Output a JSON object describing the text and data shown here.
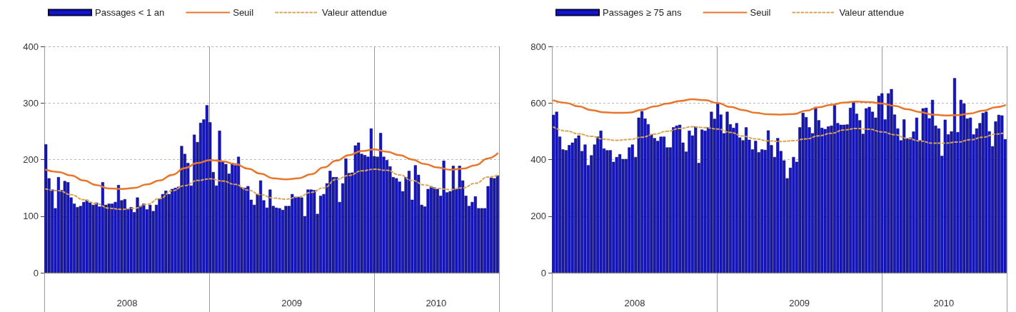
{
  "chart_data": [
    {
      "type": "bar",
      "grid": true,
      "legend": "top left",
      "ylim": [
        0,
        400
      ],
      "yticks": [
        0,
        100,
        200,
        300,
        400
      ],
      "xlim": [
        "2007-12-31T12:00",
        "2010-10-04T12:00"
      ],
      "xticks": [
        {
          "value": "2007-12-31T12:00",
          "label": null
        },
        {
          "value": "2008-07-02",
          "label": "2008"
        },
        {
          "value": "2009-01-01",
          "label": null
        },
        {
          "value": "2009-07-02",
          "label": "2009"
        },
        {
          "value": "2010-01-01",
          "label": null
        },
        {
          "value": "2010-05-18",
          "label": "2010"
        },
        {
          "value": "2010-10-04T12:00",
          "label": null
        }
      ],
      "x": [
        "2008-01-04",
        "2008-01-11",
        "2008-01-18",
        "2008-01-25",
        "2008-02-01",
        "2008-02-08",
        "2008-02-15",
        "2008-02-22",
        "2008-02-29",
        "2008-03-07",
        "2008-03-14",
        "2008-03-21",
        "2008-03-28",
        "2008-04-04",
        "2008-04-11",
        "2008-04-18",
        "2008-04-25",
        "2008-05-02",
        "2008-05-09",
        "2008-05-16",
        "2008-05-23",
        "2008-05-30",
        "2008-06-06",
        "2008-06-13",
        "2008-06-20",
        "2008-06-27",
        "2008-07-04",
        "2008-07-11",
        "2008-07-18",
        "2008-07-25",
        "2008-08-01",
        "2008-08-08",
        "2008-08-15",
        "2008-08-22",
        "2008-08-29",
        "2008-09-05",
        "2008-09-12",
        "2008-09-19",
        "2008-09-26",
        "2008-10-03",
        "2008-10-10",
        "2008-10-17",
        "2008-10-24",
        "2008-10-31",
        "2008-11-07",
        "2008-11-14",
        "2008-11-21",
        "2008-11-28",
        "2008-12-05",
        "2008-12-12",
        "2008-12-19",
        "2008-12-26",
        "2009-01-02",
        "2009-01-09",
        "2009-01-16",
        "2009-01-23",
        "2009-01-30",
        "2009-02-06",
        "2009-02-13",
        "2009-02-20",
        "2009-02-27",
        "2009-03-06",
        "2009-03-13",
        "2009-03-20",
        "2009-03-27",
        "2009-04-03",
        "2009-04-10",
        "2009-04-17",
        "2009-04-24",
        "2009-05-01",
        "2009-05-08",
        "2009-05-15",
        "2009-05-22",
        "2009-05-29",
        "2009-06-05",
        "2009-06-12",
        "2009-06-19",
        "2009-06-26",
        "2009-07-03",
        "2009-07-10",
        "2009-07-17",
        "2009-07-24",
        "2009-07-31",
        "2009-08-07",
        "2009-08-14",
        "2009-08-21",
        "2009-08-28",
        "2009-09-04",
        "2009-09-11",
        "2009-09-18",
        "2009-09-25",
        "2009-10-02",
        "2009-10-09",
        "2009-10-16",
        "2009-10-23",
        "2009-10-30",
        "2009-11-06",
        "2009-11-13",
        "2009-11-20",
        "2009-11-27",
        "2009-12-04",
        "2009-12-11",
        "2009-12-18",
        "2009-12-25",
        "2010-01-01",
        "2010-01-08",
        "2010-01-15",
        "2010-01-22",
        "2010-01-29",
        "2010-02-05",
        "2010-02-12",
        "2010-02-19",
        "2010-02-26",
        "2010-03-05",
        "2010-03-12",
        "2010-03-19",
        "2010-03-26",
        "2010-04-02",
        "2010-04-09",
        "2010-04-16",
        "2010-04-23",
        "2010-04-30",
        "2010-05-07",
        "2010-05-14",
        "2010-05-21",
        "2010-05-28",
        "2010-06-04",
        "2010-06-11",
        "2010-06-18",
        "2010-06-25",
        "2010-07-02",
        "2010-07-09",
        "2010-07-16",
        "2010-07-23",
        "2010-07-30",
        "2010-08-06",
        "2010-08-13",
        "2010-08-20",
        "2010-08-27",
        "2010-09-03",
        "2010-09-10",
        "2010-09-17",
        "2010-09-24",
        "2010-10-01"
      ],
      "series": [
        {
          "name": "Passages < 1 an",
          "color": "#1414c8",
          "values": [
            227,
            167,
            147,
            114,
            169,
            146,
            162,
            160,
            133,
            122,
            116,
            118,
            125,
            129,
            124,
            120,
            124,
            117,
            160,
            120,
            122,
            122,
            125,
            155,
            128,
            130,
            113,
            116,
            107,
            133,
            118,
            122,
            112,
            120,
            109,
            120,
            131,
            139,
            145,
            139,
            148,
            150,
            152,
            224,
            210,
            194,
            154,
            244,
            231,
            265,
            271,
            296,
            266,
            178,
            154,
            251,
            196,
            192,
            175,
            194,
            190,
            205,
            151,
            150,
            153,
            129,
            120,
            139,
            163,
            128,
            115,
            147,
            118,
            115,
            114,
            111,
            118,
            118,
            139,
            134,
            134,
            133,
            100,
            147,
            147,
            146,
            104,
            136,
            139,
            158,
            180,
            169,
            169,
            125,
            158,
            202,
            176,
            177,
            225,
            230,
            210,
            208,
            205,
            255,
            206,
            205,
            247,
            205,
            199,
            188,
            169,
            167,
            161,
            144,
            169,
            180,
            129,
            190,
            173,
            120,
            117,
            148,
            153,
            151,
            148,
            136,
            198,
            142,
            144,
            189,
            148,
            189,
            163,
            136,
            118,
            125,
            135,
            114,
            114,
            114,
            153,
            168,
            167,
            172
          ]
        },
        {
          "type": "line",
          "name": "Seuil",
          "color": "#e8762c",
          "line_style": "solid",
          "x": [
            "2008-01-04",
            "2008-02-01",
            "2008-02-29",
            "2008-03-28",
            "2008-04-25",
            "2008-05-23",
            "2008-06-20",
            "2008-07-18",
            "2008-08-15",
            "2008-09-12",
            "2008-10-10",
            "2008-11-07",
            "2008-12-05",
            "2009-01-02",
            "2009-01-30",
            "2009-02-27",
            "2009-03-27",
            "2009-04-24",
            "2009-05-22",
            "2009-06-19",
            "2009-07-17",
            "2009-08-14",
            "2009-09-11",
            "2009-10-09",
            "2009-11-06",
            "2009-12-04",
            "2010-01-01",
            "2010-01-29",
            "2010-02-26",
            "2010-03-26",
            "2010-04-23",
            "2010-05-21",
            "2010-06-18",
            "2010-07-16",
            "2010-08-13",
            "2010-09-10",
            "2010-10-01"
          ],
          "values": [
            182,
            178,
            172,
            163,
            155,
            149,
            148,
            150,
            156,
            163,
            173,
            185,
            194,
            199,
            197,
            192,
            184,
            175,
            167,
            165,
            167,
            174,
            186,
            198,
            208,
            215,
            218,
            214,
            208,
            200,
            192,
            186,
            182,
            184,
            190,
            202,
            211
          ]
        },
        {
          "type": "line",
          "name": "Valeur attendue",
          "color": "#d9a552",
          "line_style": "dashed",
          "x": [
            "2008-01-04",
            "2008-02-01",
            "2008-02-29",
            "2008-03-28",
            "2008-04-25",
            "2008-05-23",
            "2008-06-20",
            "2008-07-18",
            "2008-08-15",
            "2008-09-12",
            "2008-10-10",
            "2008-11-07",
            "2008-12-05",
            "2009-01-02",
            "2009-01-30",
            "2009-02-27",
            "2009-03-27",
            "2009-04-24",
            "2009-05-22",
            "2009-06-19",
            "2009-07-17",
            "2009-08-14",
            "2009-09-11",
            "2009-10-09",
            "2009-11-06",
            "2009-12-04",
            "2010-01-01",
            "2010-01-29",
            "2010-02-26",
            "2010-03-26",
            "2010-04-23",
            "2010-05-21",
            "2010-06-18",
            "2010-07-16",
            "2010-08-13",
            "2010-09-10",
            "2010-10-01"
          ],
          "values": [
            148,
            145,
            138,
            129,
            122,
            114,
            112,
            114,
            121,
            131,
            145,
            154,
            163,
            166,
            162,
            156,
            146,
            138,
            132,
            130,
            134,
            142,
            150,
            165,
            172,
            180,
            183,
            181,
            173,
            163,
            155,
            149,
            147,
            150,
            158,
            169,
            172
          ]
        }
      ]
    },
    {
      "type": "bar",
      "grid": true,
      "legend": "top left",
      "ylim": [
        0,
        800
      ],
      "yticks": [
        0,
        200,
        400,
        600,
        800
      ],
      "xlim": [
        "2007-12-31T12:00",
        "2010-10-04T12:00"
      ],
      "xticks": [
        {
          "value": "2007-12-31T12:00",
          "label": null
        },
        {
          "value": "2008-07-02",
          "label": "2008"
        },
        {
          "value": "2009-01-01",
          "label": null
        },
        {
          "value": "2009-07-02",
          "label": "2009"
        },
        {
          "value": "2010-01-01",
          "label": null
        },
        {
          "value": "2010-05-18",
          "label": "2010"
        },
        {
          "value": "2010-10-04T12:00",
          "label": null
        }
      ],
      "x": [
        "2008-01-04",
        "2008-01-11",
        "2008-01-18",
        "2008-01-25",
        "2008-02-01",
        "2008-02-08",
        "2008-02-15",
        "2008-02-22",
        "2008-02-29",
        "2008-03-07",
        "2008-03-14",
        "2008-03-21",
        "2008-03-28",
        "2008-04-04",
        "2008-04-11",
        "2008-04-18",
        "2008-04-25",
        "2008-05-02",
        "2008-05-09",
        "2008-05-16",
        "2008-05-23",
        "2008-05-30",
        "2008-06-06",
        "2008-06-13",
        "2008-06-20",
        "2008-06-27",
        "2008-07-04",
        "2008-07-11",
        "2008-07-18",
        "2008-07-25",
        "2008-08-01",
        "2008-08-08",
        "2008-08-15",
        "2008-08-22",
        "2008-08-29",
        "2008-09-05",
        "2008-09-12",
        "2008-09-19",
        "2008-09-26",
        "2008-10-03",
        "2008-10-10",
        "2008-10-17",
        "2008-10-24",
        "2008-10-31",
        "2008-11-07",
        "2008-11-14",
        "2008-11-21",
        "2008-11-28",
        "2008-12-05",
        "2008-12-12",
        "2008-12-19",
        "2008-12-26",
        "2009-01-02",
        "2009-01-09",
        "2009-01-16",
        "2009-01-23",
        "2009-01-30",
        "2009-02-06",
        "2009-02-13",
        "2009-02-20",
        "2009-02-27",
        "2009-03-06",
        "2009-03-13",
        "2009-03-20",
        "2009-03-27",
        "2009-04-03",
        "2009-04-10",
        "2009-04-17",
        "2009-04-24",
        "2009-05-01",
        "2009-05-08",
        "2009-05-15",
        "2009-05-22",
        "2009-05-29",
        "2009-06-05",
        "2009-06-12",
        "2009-06-19",
        "2009-06-26",
        "2009-07-03",
        "2009-07-10",
        "2009-07-17",
        "2009-07-24",
        "2009-07-31",
        "2009-08-07",
        "2009-08-14",
        "2009-08-21",
        "2009-08-28",
        "2009-09-04",
        "2009-09-11",
        "2009-09-18",
        "2009-09-25",
        "2009-10-02",
        "2009-10-09",
        "2009-10-16",
        "2009-10-23",
        "2009-10-30",
        "2009-11-06",
        "2009-11-13",
        "2009-11-20",
        "2009-11-27",
        "2009-12-04",
        "2009-12-11",
        "2009-12-18",
        "2009-12-25",
        "2010-01-01",
        "2010-01-08",
        "2010-01-15",
        "2010-01-22",
        "2010-01-29",
        "2010-02-05",
        "2010-02-12",
        "2010-02-19",
        "2010-02-26",
        "2010-03-05",
        "2010-03-12",
        "2010-03-19",
        "2010-03-26",
        "2010-04-02",
        "2010-04-09",
        "2010-04-16",
        "2010-04-23",
        "2010-04-30",
        "2010-05-07",
        "2010-05-14",
        "2010-05-21",
        "2010-05-28",
        "2010-06-04",
        "2010-06-11",
        "2010-06-18",
        "2010-06-25",
        "2010-07-02",
        "2010-07-09",
        "2010-07-16",
        "2010-07-23",
        "2010-07-30",
        "2010-08-06",
        "2010-08-13",
        "2010-08-20",
        "2010-08-27",
        "2010-09-03",
        "2010-09-10",
        "2010-09-17",
        "2010-09-24",
        "2010-10-01"
      ],
      "series": [
        {
          "name": "Passages ≥ 75 ans",
          "color": "#1414c8",
          "values": [
            558,
            569,
            481,
            436,
            433,
            451,
            460,
            475,
            485,
            430,
            453,
            380,
            415,
            453,
            481,
            502,
            439,
            433,
            433,
            392,
            409,
            419,
            402,
            402,
            443,
            453,
            409,
            548,
            571,
            545,
            525,
            489,
            476,
            466,
            481,
            481,
            443,
            443,
            514,
            520,
            523,
            460,
            428,
            502,
            485,
            517,
            388,
            506,
            502,
            514,
            569,
            544,
            600,
            559,
            493,
            569,
            525,
            512,
            529,
            478,
            468,
            514,
            470,
            436,
            466,
            426,
            436,
            434,
            503,
            451,
            409,
            476,
            430,
            397,
            334,
            371,
            409,
            392,
            514,
            565,
            550,
            514,
            493,
            586,
            539,
            512,
            508,
            517,
            520,
            592,
            529,
            523,
            523,
            524,
            583,
            603,
            562,
            539,
            491,
            581,
            586,
            569,
            548,
            625,
            634,
            542,
            634,
            649,
            559,
            510,
            468,
            542,
            475,
            478,
            499,
            548,
            468,
            581,
            583,
            546,
            611,
            520,
            510,
            413,
            541,
            489,
            500,
            688,
            497,
            611,
            598,
            545,
            548,
            489,
            510,
            529,
            565,
            569,
            500,
            447,
            535,
            558,
            556,
            472
          ]
        },
        {
          "type": "line",
          "name": "Seuil",
          "color": "#e8762c",
          "line_style": "solid",
          "x": [
            "2008-01-04",
            "2008-02-01",
            "2008-02-29",
            "2008-03-28",
            "2008-04-25",
            "2008-05-23",
            "2008-06-20",
            "2008-07-18",
            "2008-08-15",
            "2008-09-12",
            "2008-10-10",
            "2008-11-07",
            "2008-12-05",
            "2009-01-02",
            "2009-01-30",
            "2009-02-27",
            "2009-03-27",
            "2009-04-24",
            "2009-05-22",
            "2009-06-19",
            "2009-07-17",
            "2009-08-14",
            "2009-09-11",
            "2009-10-09",
            "2009-11-06",
            "2009-12-04",
            "2010-01-01",
            "2010-01-29",
            "2010-02-26",
            "2010-03-26",
            "2010-04-23",
            "2010-05-21",
            "2010-06-18",
            "2010-07-16",
            "2010-08-13",
            "2010-09-10",
            "2010-10-01"
          ],
          "values": [
            609,
            600,
            588,
            575,
            567,
            565,
            566,
            576,
            588,
            598,
            607,
            613,
            610,
            600,
            586,
            575,
            565,
            560,
            559,
            561,
            573,
            585,
            594,
            601,
            605,
            603,
            598,
            590,
            578,
            568,
            559,
            556,
            557,
            563,
            573,
            585,
            592
          ]
        },
        {
          "type": "line",
          "name": "Valeur attendue",
          "color": "#d9a552",
          "line_style": "dashed",
          "x": [
            "2008-01-04",
            "2008-02-01",
            "2008-02-29",
            "2008-03-28",
            "2008-04-25",
            "2008-05-23",
            "2008-06-20",
            "2008-07-18",
            "2008-08-15",
            "2008-09-12",
            "2008-10-10",
            "2008-11-07",
            "2008-12-05",
            "2009-01-02",
            "2009-01-30",
            "2009-02-27",
            "2009-03-27",
            "2009-04-24",
            "2009-05-22",
            "2009-06-19",
            "2009-07-17",
            "2009-08-14",
            "2009-09-11",
            "2009-10-09",
            "2009-11-06",
            "2009-12-04",
            "2010-01-01",
            "2010-01-29",
            "2010-02-26",
            "2010-03-26",
            "2010-04-23",
            "2010-05-21",
            "2010-06-18",
            "2010-07-16",
            "2010-08-13",
            "2010-09-10",
            "2010-10-01"
          ],
          "values": [
            515,
            501,
            491,
            482,
            472,
            468,
            471,
            479,
            490,
            500,
            510,
            516,
            513,
            508,
            496,
            483,
            473,
            466,
            464,
            467,
            473,
            484,
            493,
            505,
            510,
            507,
            498,
            488,
            475,
            466,
            458,
            458,
            462,
            470,
            479,
            490,
            495
          ]
        }
      ]
    }
  ]
}
